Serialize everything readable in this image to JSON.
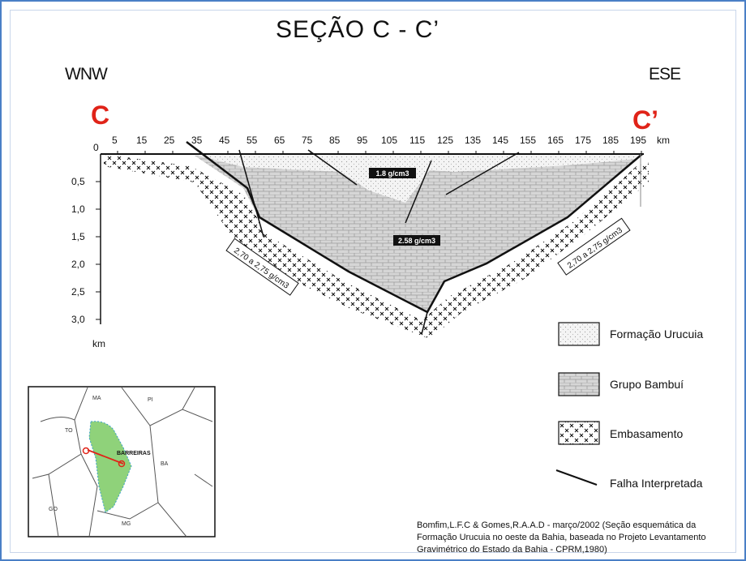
{
  "title": "SEÇÃO   C - C’",
  "directions": {
    "west": "WNW",
    "east": "ESE"
  },
  "endpoints": {
    "start": "C",
    "end": "C’"
  },
  "horizontal_axis": {
    "unit": "km",
    "ticks": [
      "5",
      "15",
      "25",
      "35",
      "45",
      "55",
      "65",
      "75",
      "85",
      "95",
      "105",
      "115",
      "125",
      "135",
      "145",
      "155",
      "165",
      "175",
      "185",
      "195"
    ],
    "origin_label": "0"
  },
  "vertical_axis": {
    "unit": "km",
    "ticks": [
      "0,5",
      "1,0",
      "1,5",
      "2,0",
      "2,5",
      "3,0"
    ]
  },
  "annotations": {
    "urucuia_label": "1.8 g/cm3",
    "bambui_label": "2.58 g/cm3",
    "left_basement_label": "2,70 a 2,75 g/cm3",
    "right_basement_label": "2,70 a 2,75 g/cm3"
  },
  "legend": [
    {
      "key": "urucuia",
      "label": "Formação Urucuia"
    },
    {
      "key": "bambui",
      "label": "Grupo Bambuí"
    },
    {
      "key": "embasamento",
      "label": "Embasamento"
    },
    {
      "key": "falha",
      "label": "Falha Interpretada"
    }
  ],
  "inset_map": {
    "state_labels": [
      "MA",
      "PI",
      "TO",
      "BA",
      "GO",
      "MG"
    ],
    "city_label": "BARREIRAS"
  },
  "source": [
    "Bomfim,L.F.C & Gomes,R.A.A.D - março/2002  (Seção esquemática da",
    "Formação Urucuia no oeste da Bahia, baseada no Projeto Levantamento",
    "Gravimétrico do Estado da Bahia - CPRM,1980)"
  ],
  "colors": {
    "frame": "#4a7fc6",
    "endpoint": "#e02318",
    "inset_region": "#8fd27a",
    "inset_route": "#e02318"
  }
}
